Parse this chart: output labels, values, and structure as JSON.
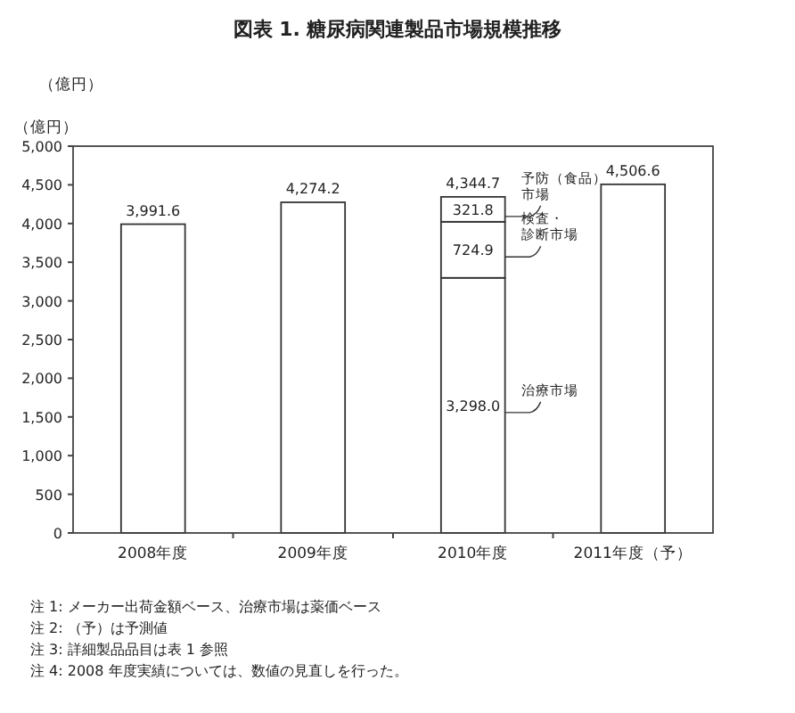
{
  "chart_data": {
    "type": "bar",
    "stacked": true,
    "title": "図表 1. 糖尿病関連製品市場規模推移",
    "ylabel": "（億円）",
    "categories": [
      "2008年度",
      "2009年度",
      "2010年度",
      "2011年度（予）"
    ],
    "series": [
      {
        "color": "#ffffff",
        "values": [
          3991.6,
          4274.2,
          null,
          4506.6
        ]
      },
      {
        "name": "治療市場",
        "color": "#ffffff",
        "values": [
          null,
          null,
          3298.0,
          null
        ],
        "value_labels": [
          null,
          null,
          "3,298.0",
          null
        ]
      },
      {
        "name": "検査・診断市場",
        "color": "#ffffff",
        "values": [
          null,
          null,
          724.9,
          null
        ],
        "value_labels": [
          null,
          null,
          "724.9",
          null
        ]
      },
      {
        "name": "予防（食品）市場",
        "color": "#ffffff",
        "values": [
          null,
          null,
          321.8,
          null
        ],
        "value_labels": [
          null,
          null,
          "321.8",
          null
        ]
      }
    ],
    "totals": [
      "3,991.6",
      "4,274.2",
      "4,344.7",
      "4,506.6"
    ],
    "ylim": [
      0,
      5000
    ],
    "yticks": [
      0,
      500,
      {
        "value": 1000,
        "label": "1,000"
      },
      {
        "value": 1500,
        "label": "1,500"
      },
      {
        "value": 2000,
        "label": "2,000"
      },
      {
        "value": 2500,
        "label": "2,500"
      },
      {
        "value": 3000,
        "label": "3,000"
      },
      {
        "value": 3500,
        "label": "3,500"
      },
      {
        "value": 4000,
        "label": "4,000"
      },
      {
        "value": 4500,
        "label": "4,500"
      },
      {
        "value": 5000,
        "label": "5,000"
      }
    ],
    "grid": false,
    "legend": false,
    "annotations": [
      "（億円）",
      "注 1:  メーカー出荷金額ベース、治療市場は薬価ベース",
      "注 2:  （予）は予測値",
      "注 3:  詳細製品品目は表 1 参照",
      "注 4:  2008 年度実績については、数値の見直しを行った。"
    ]
  }
}
